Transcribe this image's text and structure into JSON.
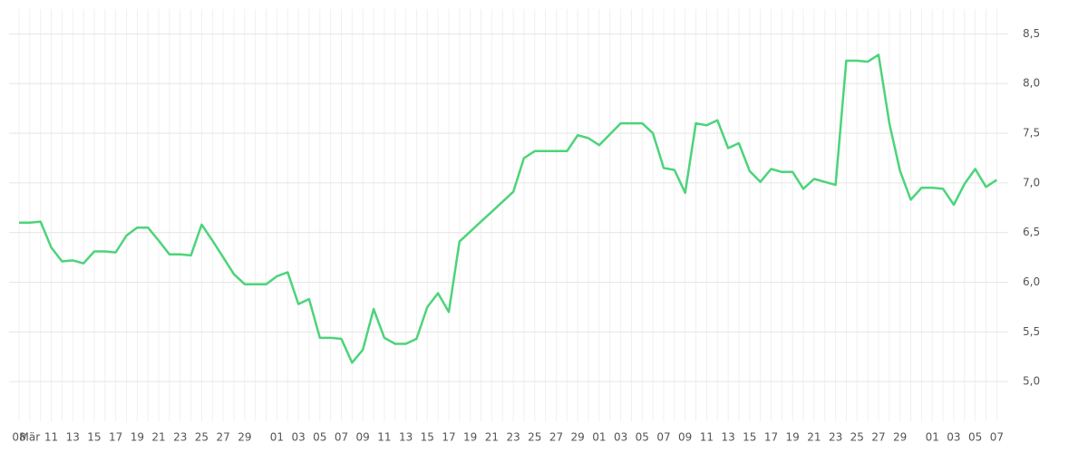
{
  "chart_data": {
    "type": "line",
    "categories": [
      "08",
      "Mär",
      null,
      "11",
      null,
      "13",
      null,
      "15",
      null,
      "17",
      null,
      "19",
      null,
      "21",
      null,
      "23",
      null,
      "25",
      null,
      "27",
      null,
      "29",
      null,
      null,
      "01",
      null,
      "03",
      null,
      "05",
      null,
      "07",
      null,
      "09",
      null,
      "11",
      null,
      "13",
      null,
      "15",
      null,
      "17",
      null,
      "19",
      null,
      "21",
      null,
      "23",
      null,
      "25",
      null,
      "27",
      null,
      "29",
      null,
      "01",
      null,
      "03",
      null,
      "05",
      null,
      "07",
      null,
      "09",
      null,
      "11",
      null,
      "13",
      null,
      "15",
      null,
      "17",
      null,
      "19",
      null,
      "21",
      null,
      "23",
      null,
      "25",
      null,
      "27",
      null,
      "29",
      null,
      null,
      "01",
      null,
      "03",
      null,
      "05",
      null,
      "07"
    ],
    "series": [
      {
        "color": "#4cd47a",
        "values": [
          6.6,
          6.6,
          6.61,
          6.35,
          6.21,
          6.22,
          6.19,
          6.31,
          6.31,
          6.3,
          6.47,
          6.55,
          6.55,
          6.42,
          6.28,
          6.28,
          6.27,
          6.58,
          6.42,
          6.25,
          6.08,
          5.98,
          5.98,
          5.98,
          6.06,
          6.1,
          5.78,
          5.83,
          5.44,
          5.44,
          5.43,
          5.19,
          5.32,
          5.73,
          5.44,
          5.38,
          5.38,
          5.43,
          5.75,
          5.89,
          5.7,
          6.41,
          6.51,
          6.61,
          6.71,
          6.81,
          6.91,
          7.25,
          7.32,
          7.32,
          7.32,
          7.32,
          7.48,
          7.45,
          7.38,
          7.49,
          7.6,
          7.6,
          7.6,
          7.5,
          7.15,
          7.13,
          6.9,
          7.6,
          7.58,
          7.63,
          7.35,
          7.4,
          7.12,
          7.01,
          7.14,
          7.11,
          7.11,
          6.94,
          7.04,
          7.01,
          6.98,
          8.23,
          8.23,
          8.22,
          8.29,
          7.6,
          7.12,
          6.83,
          6.95,
          6.95,
          6.94,
          6.78,
          6.99,
          7.14,
          6.96,
          7.03
        ]
      }
    ],
    "ylim": [
      4.6,
      8.75
    ],
    "yticks": [
      {
        "value": 5.0,
        "label": "5,0"
      },
      {
        "value": 5.5,
        "label": "5,5"
      },
      {
        "value": 6.0,
        "label": "6,0"
      },
      {
        "value": 6.5,
        "label": "6,5"
      },
      {
        "value": 7.0,
        "label": "7,0"
      },
      {
        "value": 7.5,
        "label": "7,5"
      },
      {
        "value": 8.0,
        "label": "8,0"
      },
      {
        "value": 8.5,
        "label": "8,5"
      }
    ],
    "grid": true
  }
}
